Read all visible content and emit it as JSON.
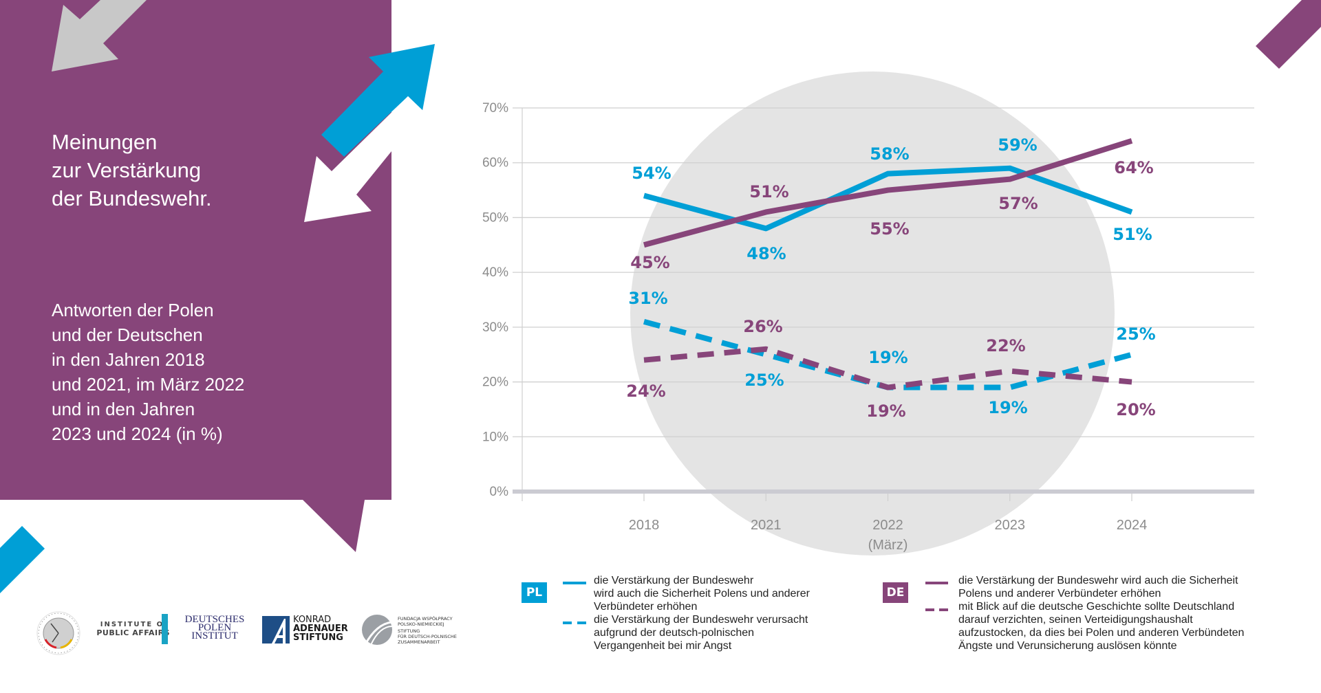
{
  "panel": {
    "title_lines": [
      "Meinungen",
      "zur Verstärkung",
      "der Bundeswehr."
    ],
    "subtitle_lines": [
      "Antworten der Polen",
      "und der Deutschen",
      "in den Jahren 2018",
      "und 2021, im März 2022",
      "und in den Jahren",
      "2023 und 2024 (in %)"
    ]
  },
  "colors": {
    "purple": "#87457a",
    "blue": "#009fd6",
    "gray_arrow": "#c8c8c8",
    "circle": "#e4e4e4",
    "grid": "#cfcfcf",
    "baseline": "#cbcbd2"
  },
  "chart_data": {
    "type": "line",
    "title": "Meinungen zur Verstärkung der Bundeswehr.",
    "categories": [
      "2018",
      "2021",
      "2022",
      "2023",
      "2024"
    ],
    "category_sublabels": [
      "",
      "",
      "(März)",
      "",
      ""
    ],
    "ylabel": "",
    "xlabel": "",
    "ylim": [
      0,
      70
    ],
    "yticks": [
      "0%",
      "10%",
      "20%",
      "30%",
      "40%",
      "50%",
      "60%",
      "70%"
    ],
    "grid": true,
    "series": [
      {
        "name": "PL – die Verstärkung der Bundeswehr wird auch die Sicherheit Polens und anderer Verbündeter erhöhen",
        "country": "PL",
        "style": "solid",
        "color": "#009fd6",
        "values": [
          54,
          48,
          58,
          59,
          51
        ],
        "labels": [
          "54%",
          "48%",
          "58%",
          "59%",
          "51%"
        ]
      },
      {
        "name": "DE – die Verstärkung der Bundeswehr wird auch die Sicherheit Polens und anderer Verbündeter erhöhen",
        "country": "DE",
        "style": "solid",
        "color": "#87457a",
        "values": [
          45,
          51,
          55,
          57,
          64
        ],
        "labels": [
          "45%",
          "51%",
          "55%",
          "57%",
          "64%"
        ]
      },
      {
        "name": "PL – die Verstärkung der Bundeswehr verursacht aufgrund der deutsch-polnischen Vergangenheit bei mir Angst",
        "country": "PL",
        "style": "dashed",
        "color": "#009fd6",
        "values": [
          31,
          25,
          19,
          19,
          25
        ],
        "labels": [
          "31%",
          "25%",
          "19%",
          "19%",
          "25%"
        ]
      },
      {
        "name": "DE – mit Blick auf die deutsche Geschichte sollte Deutschland darauf verzichten, seinen Verteidigungshaushalt aufzustocken",
        "country": "DE",
        "style": "dashed",
        "color": "#87457a",
        "values": [
          24,
          26,
          19,
          22,
          20
        ],
        "labels": [
          "24%",
          "26%",
          "19%",
          "22%",
          "20%"
        ]
      }
    ],
    "legend_position": "bottom"
  },
  "legend": {
    "pl": {
      "badge": "PL",
      "solid_lines": [
        "die Verstärkung der Bundeswehr",
        "wird auch die Sicherheit Polens und anderer",
        "Verbündeter erhöhen"
      ],
      "dashed_lines": [
        "die Verstärkung der Bundeswehr verursacht",
        "aufgrund der deutsch-polnischen",
        "Vergangenheit bei mir Angst"
      ]
    },
    "de": {
      "badge": "DE",
      "solid_lines": [
        "die Verstärkung der Bundeswehr wird auch die Sicherheit",
        "Polens und anderer Verbündeter erhöhen"
      ],
      "dashed_lines": [
        "mit Blick auf die deutsche Geschichte sollte Deutschland",
        "darauf verzichten, seinen Verteidigungshaushalt",
        "aufzustocken, da dies bei Polen und anderen Verbündeten",
        "Ängste und Verunsicherung auslösen könnte"
      ]
    }
  },
  "logos": {
    "barometer": {
      "ring_text": "DEUTSCH-POLNISCHES BAROMETER"
    },
    "ipa": {
      "line1": "INSTITUTE OF",
      "line2": "PUBLIC AFFAIRS"
    },
    "dpi": {
      "line1": "DEUTSCHES",
      "line2": "POLEN",
      "line3": "INSTITUT"
    },
    "kas": {
      "line1": "KONRAD",
      "line2": "ADENAUER",
      "line3": "STIFTUNG"
    },
    "fwpn": {
      "line1": "FUNDACJA WSPÓŁPRACY",
      "line2": "POLSKO-NIEMIECKIEJ",
      "line3": "STIFTUNG",
      "line4": "FÜR DEUTSCH-POLNISCHE",
      "line5": "ZUSAMMENARBEIT"
    }
  }
}
